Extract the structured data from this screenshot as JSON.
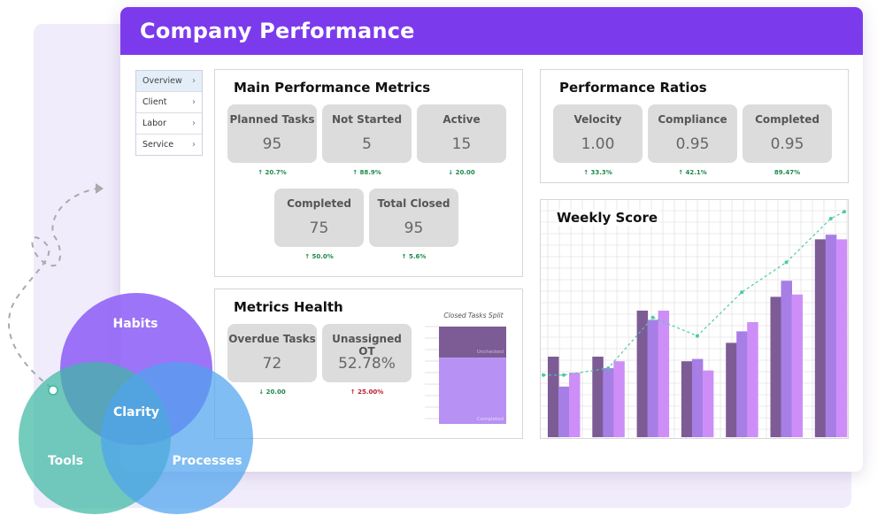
{
  "app": {
    "title": "Company Performance"
  },
  "nav": [
    {
      "label": "Overview",
      "active": true
    },
    {
      "label": "Client",
      "active": false
    },
    {
      "label": "Labor",
      "active": false
    },
    {
      "label": "Service",
      "active": false
    }
  ],
  "main_metrics": {
    "title": "Main Performance Metrics",
    "cards": [
      {
        "label": "Planned Tasks",
        "value": "95",
        "delta": "↑ 20.7%",
        "dir": "up"
      },
      {
        "label": "Not Started",
        "value": "5",
        "delta": "↑ 88.9%",
        "dir": "up"
      },
      {
        "label": "Active",
        "value": "15",
        "delta": "↓ 20.00",
        "dir": "up"
      },
      {
        "label": "Completed",
        "value": "75",
        "delta": "↑ 50.0%",
        "dir": "up"
      },
      {
        "label": "Total Closed",
        "value": "95",
        "delta": "↑ 5.6%",
        "dir": "up"
      }
    ]
  },
  "ratios": {
    "title": "Performance Ratios",
    "cards": [
      {
        "label": "Velocity",
        "value": "1.00",
        "delta": "↑ 33.3%",
        "dir": "up"
      },
      {
        "label": "Compliance",
        "value": "0.95",
        "delta": "↑ 42.1%",
        "dir": "up"
      },
      {
        "label": "Completed",
        "value": "0.95",
        "delta": "89.47%",
        "dir": "up"
      }
    ]
  },
  "health": {
    "title": "Metrics Health",
    "cards": [
      {
        "label": "Overdue Tasks",
        "value": "72",
        "delta": "↓ 20.00",
        "dir": "up"
      },
      {
        "label": "Unassigned OT",
        "value": "52.78%",
        "delta": "↑ 25.00%",
        "dir": "down"
      }
    ],
    "split": {
      "title": "Closed Tasks Split",
      "top_label": "Unchecked",
      "bottom_label": "Completed",
      "top_fraction": 0.32
    }
  },
  "chart_data": {
    "type": "bar",
    "title": "Weekly Score",
    "ylim": [
      0,
      100
    ],
    "grid": true,
    "series": [
      {
        "values": [
          35,
          35,
          55,
          33,
          41,
          61,
          86
        ],
        "color": "#7d5c95"
      },
      {
        "values": [
          22,
          30,
          51,
          34,
          46,
          68,
          88
        ],
        "color": "#a77ee6"
      },
      {
        "values": [
          28,
          33,
          55,
          29,
          50,
          62,
          86
        ],
        "color": "#cd8ff7"
      }
    ],
    "trend": [
      27,
      30,
      52,
      44,
      63,
      76,
      95
    ],
    "trend_color": "#4cc9a6"
  },
  "venn": {
    "circles": [
      {
        "label": "Habits",
        "color": "#8b5cf6"
      },
      {
        "label": "Tools",
        "color": "#3fb8a3"
      },
      {
        "label": "Processes",
        "color": "#4fa3ee"
      }
    ],
    "center_label": "Clarity"
  }
}
